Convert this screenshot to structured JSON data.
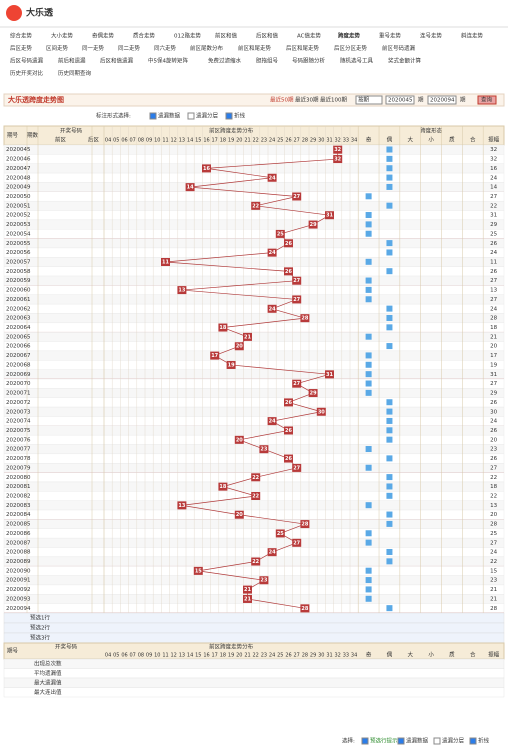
{
  "header": {
    "logo": "大乐透"
  },
  "nav": [
    [
      "综合走势",
      "大小走势",
      "奇偶走势",
      "质合走势",
      "012路走势",
      "前区和值",
      "后区和值",
      "AC值走势",
      "跨度走势",
      "重号走势",
      "连号走势",
      "斜连走势"
    ],
    [
      "后区走势",
      "区间走势",
      "同一走势",
      "同二走势",
      "同六走势",
      "前区尾数分布",
      "前区和尾走势",
      "后区和尾走势",
      "后区分区走势",
      "前区号码遗漏"
    ],
    [
      "后区号码遗漏",
      "前后和遗漏",
      "后区和值遗漏",
      "中5保4旋转矩阵",
      "免费过滤缩水",
      "胆拖组号",
      "号码跟随分析",
      "随机选号工具",
      "奖式金额计算"
    ],
    [
      "历史开奖对比",
      "历史同期查询"
    ]
  ],
  "title": "大乐透跨度走势图",
  "filters": {
    "recent": [
      "最近50期",
      "最近30期",
      "最近100期"
    ],
    "mode": "按期",
    "from": "2020045",
    "sep": "期",
    "to": "2020094",
    "end": "期",
    "query": "查询"
  },
  "mark_options": {
    "label": "标注形式选择:",
    "options": [
      "遗漏数据",
      "遗漏分层",
      "折线"
    ]
  },
  "table": {
    "headers": {
      "issue": "期号",
      "index": "期数",
      "draw": "开奖号码",
      "front": "前区",
      "back": "后区",
      "span_dist": "前区跨度走势分布",
      "shape": "跨度形态",
      "shape_cols": [
        "奇",
        "偶",
        "大",
        "小",
        "质",
        "合",
        "振幅"
      ]
    },
    "columns": [
      "04",
      "05",
      "06",
      "07",
      "08",
      "09",
      "10",
      "11",
      "12",
      "13",
      "14",
      "15",
      "16",
      "17",
      "18",
      "19",
      "20",
      "21",
      "22",
      "23",
      "24",
      "25",
      "26",
      "27",
      "28",
      "29",
      "30",
      "31",
      "32",
      "33",
      "34"
    ],
    "rows": [
      {
        "issue": "2020045",
        "span": 32
      },
      {
        "issue": "2020046",
        "span": 32
      },
      {
        "issue": "2020047",
        "span": 16
      },
      {
        "issue": "2020048",
        "span": 24
      },
      {
        "issue": "2020049",
        "span": 14
      },
      {
        "issue": "2020050",
        "span": 27
      },
      {
        "issue": "2020051",
        "span": 22
      },
      {
        "issue": "2020052",
        "span": 31
      },
      {
        "issue": "2020053",
        "span": 29
      },
      {
        "issue": "2020054",
        "span": 25
      },
      {
        "issue": "2020055",
        "span": 26
      },
      {
        "issue": "2020056",
        "span": 24
      },
      {
        "issue": "2020057",
        "span": 11
      },
      {
        "issue": "2020058",
        "span": 26
      },
      {
        "issue": "2020059",
        "span": 27
      },
      {
        "issue": "2020060",
        "span": 13
      },
      {
        "issue": "2020061",
        "span": 27
      },
      {
        "issue": "2020062",
        "span": 24
      },
      {
        "issue": "2020063",
        "span": 28
      },
      {
        "issue": "2020064",
        "span": 18
      },
      {
        "issue": "2020065",
        "span": 21
      },
      {
        "issue": "2020066",
        "span": 20
      },
      {
        "issue": "2020067",
        "span": 17
      },
      {
        "issue": "2020068",
        "span": 19
      },
      {
        "issue": "2020069",
        "span": 31
      },
      {
        "issue": "2020070",
        "span": 27
      },
      {
        "issue": "2020071",
        "span": 29
      },
      {
        "issue": "2020072",
        "span": 26
      },
      {
        "issue": "2020073",
        "span": 30
      },
      {
        "issue": "2020074",
        "span": 24
      },
      {
        "issue": "2020075",
        "span": 26
      },
      {
        "issue": "2020076",
        "span": 20
      },
      {
        "issue": "2020077",
        "span": 23
      },
      {
        "issue": "2020078",
        "span": 26
      },
      {
        "issue": "2020079",
        "span": 27
      },
      {
        "issue": "2020080",
        "span": 22
      },
      {
        "issue": "2020081",
        "span": 18
      },
      {
        "issue": "2020082",
        "span": 22
      },
      {
        "issue": "2020083",
        "span": 13
      },
      {
        "issue": "2020084",
        "span": 20
      },
      {
        "issue": "2020085",
        "span": 28
      },
      {
        "issue": "2020086",
        "span": 25
      },
      {
        "issue": "2020087",
        "span": 27
      },
      {
        "issue": "2020088",
        "span": 24
      },
      {
        "issue": "2020089",
        "span": 22
      },
      {
        "issue": "2020090",
        "span": 15
      },
      {
        "issue": "2020091",
        "span": 23
      },
      {
        "issue": "2020092",
        "span": 21
      },
      {
        "issue": "2020093",
        "span": 21
      },
      {
        "issue": "2020094",
        "span": 28
      }
    ],
    "preselect": [
      "预选1行",
      "预选2行",
      "预选3行"
    ],
    "summary": [
      "出现总次数",
      "平均遗漏值",
      "最大遗漏值",
      "最大连出值"
    ]
  },
  "footer": {
    "label": "选择:",
    "options": [
      "预选行提示",
      "遗漏数据",
      "遗漏分层",
      "折线"
    ]
  }
}
